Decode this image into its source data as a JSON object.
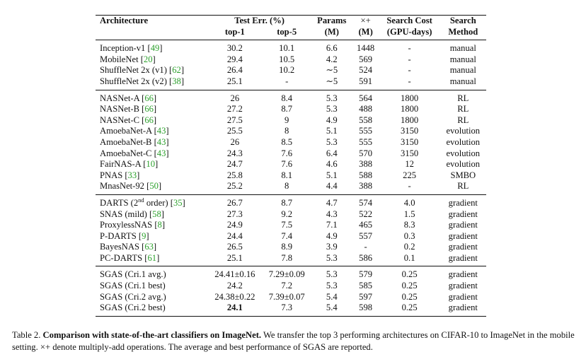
{
  "header": {
    "architecture": "Architecture",
    "test_err": "Test Err. (%)",
    "top1": "top-1",
    "top5": "top-5",
    "params": "Params",
    "params_unit": "(M)",
    "multadd": "×+",
    "multadd_unit": "(M)",
    "search_cost": "Search Cost",
    "search_cost_unit": "(GPU-days)",
    "search": "Search",
    "method": "Method"
  },
  "groups": [
    [
      {
        "name": "Inception-v1 [",
        "ref": "49",
        "close": "]",
        "top1": "30.2",
        "top5": "10.1",
        "params": "6.6",
        "madds": "1448",
        "cost": "-",
        "method": "manual"
      },
      {
        "name": "MobileNet [",
        "ref": "20",
        "close": "]",
        "top1": "29.4",
        "top5": "10.5",
        "params": "4.2",
        "madds": "569",
        "cost": "-",
        "method": "manual"
      },
      {
        "name": "ShuffleNet 2x (v1) [",
        "ref": "62",
        "close": "]",
        "top1": "26.4",
        "top5": "10.2",
        "params": "∼5",
        "madds": "524",
        "cost": "-",
        "method": "manual"
      },
      {
        "name": "ShuffleNet 2x (v2) [",
        "ref": "38",
        "close": "]",
        "top1": "25.1",
        "top5": "-",
        "params": "∼5",
        "madds": "591",
        "cost": "-",
        "method": "manual"
      }
    ],
    [
      {
        "name": "NASNet-A [",
        "ref": "66",
        "close": "]",
        "top1": "26",
        "top5": "8.4",
        "params": "5.3",
        "madds": "564",
        "cost": "1800",
        "method": "RL"
      },
      {
        "name": "NASNet-B [",
        "ref": "66",
        "close": "]",
        "top1": "27.2",
        "top5": "8.7",
        "params": "5.3",
        "madds": "488",
        "cost": "1800",
        "method": "RL"
      },
      {
        "name": "NASNet-C [",
        "ref": "66",
        "close": "]",
        "top1": "27.5",
        "top5": "9",
        "params": "4.9",
        "madds": "558",
        "cost": "1800",
        "method": "RL"
      },
      {
        "name": "AmoebaNet-A [",
        "ref": "43",
        "close": "]",
        "top1": "25.5",
        "top5": "8",
        "params": "5.1",
        "madds": "555",
        "cost": "3150",
        "method": "evolution"
      },
      {
        "name": "AmoebaNet-B [",
        "ref": "43",
        "close": "]",
        "top1": "26",
        "top5": "8.5",
        "params": "5.3",
        "madds": "555",
        "cost": "3150",
        "method": "evolution"
      },
      {
        "name": "AmoebaNet-C [",
        "ref": "43",
        "close": "]",
        "top1": "24.3",
        "top5": "7.6",
        "params": "6.4",
        "madds": "570",
        "cost": "3150",
        "method": "evolution"
      },
      {
        "name": "FairNAS-A [",
        "ref": "10",
        "close": "]",
        "top1": "24.7",
        "top5": "7.6",
        "params": "4.6",
        "madds": "388",
        "cost": "12",
        "method": "evolution"
      },
      {
        "name": "PNAS [",
        "ref": "33",
        "close": "]",
        "top1": "25.8",
        "top5": "8.1",
        "params": "5.1",
        "madds": "588",
        "cost": "225",
        "method": "SMBO"
      },
      {
        "name": "MnasNet-92 [",
        "ref": "50",
        "close": "]",
        "top1": "25.2",
        "top5": "8",
        "params": "4.4",
        "madds": "388",
        "cost": "-",
        "method": "RL"
      }
    ],
    [
      {
        "name": "DARTS (2",
        "sup": "nd",
        "name2": " order) [",
        "ref": "35",
        "close": "]",
        "top1": "26.7",
        "top5": "8.7",
        "params": "4.7",
        "madds": "574",
        "cost": "4.0",
        "method": "gradient"
      },
      {
        "name": "SNAS (mild) [",
        "ref": "58",
        "close": "]",
        "top1": "27.3",
        "top5": "9.2",
        "params": "4.3",
        "madds": "522",
        "cost": "1.5",
        "method": "gradient"
      },
      {
        "name": "ProxylessNAS [",
        "ref": "8",
        "close": "]",
        "top1": "24.9",
        "top5": "7.5",
        "params": "7.1",
        "madds": "465",
        "cost": "8.3",
        "method": "gradient"
      },
      {
        "name": "P-DARTS [",
        "ref": "9",
        "close": "]",
        "top1": "24.4",
        "top5": "7.4",
        "params": "4.9",
        "madds": "557",
        "cost": "0.3",
        "method": "gradient"
      },
      {
        "name": "BayesNAS [",
        "ref": "63",
        "close": "]",
        "top1": "26.5",
        "top5": "8.9",
        "params": "3.9",
        "madds": "-",
        "cost": "0.2",
        "method": "gradient"
      },
      {
        "name": "PC-DARTS [",
        "ref": "61",
        "close": "]",
        "top1": "25.1",
        "top5": "7.8",
        "params": "5.3",
        "madds": "586",
        "cost": "0.1",
        "method": "gradient"
      }
    ],
    [
      {
        "name": "SGAS (Cri.1 avg.)",
        "top1": "24.41±0.16",
        "top5": "7.29±0.09",
        "params": "5.3",
        "madds": "579",
        "cost": "0.25",
        "method": "gradient"
      },
      {
        "name": "SGAS (Cri.1 best)",
        "top1": "24.2",
        "top5": "7.2",
        "params": "5.3",
        "madds": "585",
        "cost": "0.25",
        "method": "gradient"
      },
      {
        "name": "SGAS (Cri.2 avg.)",
        "top1": "24.38±0.22",
        "top5": "7.39±0.07",
        "params": "5.4",
        "madds": "597",
        "cost": "0.25",
        "method": "gradient"
      },
      {
        "name": "SGAS (Cri.2 best)",
        "top1": "24.1",
        "top1_bold": true,
        "top5": "7.3",
        "params": "5.4",
        "madds": "598",
        "cost": "0.25",
        "method": "gradient"
      }
    ]
  ],
  "caption": {
    "label": "Table 2.",
    "title": "Comparison with state-of-the-art classifiers on ImageNet.",
    "text": "We transfer the top 3 performing architectures on CIFAR-10 to ImageNet in the mobile setting. ×+ denote multiply-add operations. The average and best performance of SGAS are reported."
  }
}
